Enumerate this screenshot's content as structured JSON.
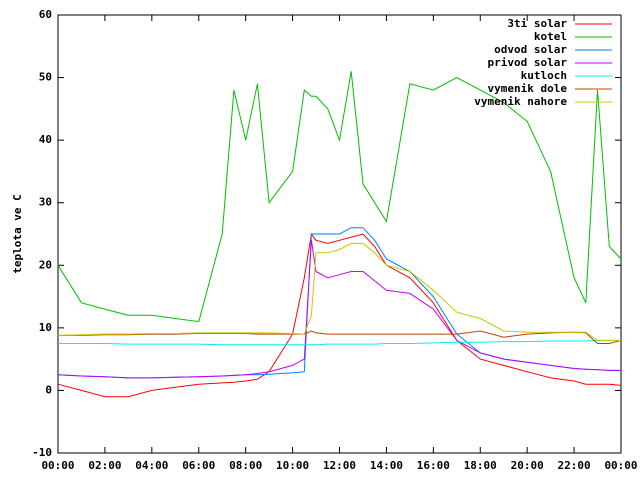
{
  "chart_data": {
    "type": "line",
    "y_label": "teplota ve C",
    "x": [
      0,
      1,
      2,
      3,
      4,
      5,
      6,
      7,
      7.5,
      8,
      8.5,
      9,
      10,
      10.5,
      10.8,
      11,
      11.5,
      12,
      12.5,
      13,
      13.5,
      14,
      15,
      16,
      17,
      18,
      19,
      20,
      21,
      22,
      22.5,
      23,
      23.5,
      24
    ],
    "xlim": [
      0,
      24
    ],
    "xticks": [
      {
        "value": 0,
        "label": "00:00"
      },
      {
        "value": 2,
        "label": "02:00"
      },
      {
        "value": 4,
        "label": "04:00"
      },
      {
        "value": 6,
        "label": "06:00"
      },
      {
        "value": 8,
        "label": "08:00"
      },
      {
        "value": 10,
        "label": "10:00"
      },
      {
        "value": 12,
        "label": "12:00"
      },
      {
        "value": 14,
        "label": "14:00"
      },
      {
        "value": 16,
        "label": "16:00"
      },
      {
        "value": 18,
        "label": "18:00"
      },
      {
        "value": 20,
        "label": "20:00"
      },
      {
        "value": 22,
        "label": "22:00"
      },
      {
        "value": 24,
        "label": "00:00"
      }
    ],
    "ylim": [
      -10,
      60
    ],
    "yticks": [
      -10,
      0,
      10,
      20,
      30,
      40,
      50,
      60
    ],
    "legend": "top-right",
    "series": [
      {
        "name": "3ti solar",
        "color": "#ff0000",
        "values": [
          1,
          0,
          -1,
          -1,
          0,
          0.5,
          1,
          1.2,
          1.3,
          1.5,
          1.8,
          3,
          9,
          18,
          25,
          24,
          23.5,
          24,
          24.5,
          25,
          23,
          20,
          18,
          14,
          8,
          5,
          4,
          3,
          2,
          1.5,
          1,
          1,
          1,
          0.8
        ]
      },
      {
        "name": "kotel",
        "color": "#00c000",
        "values": [
          20,
          14,
          13,
          12,
          12,
          11.5,
          11,
          25,
          48,
          40,
          49,
          30,
          35,
          48,
          47,
          47,
          45,
          40,
          51,
          33,
          30,
          27,
          49,
          48,
          50,
          48,
          46,
          43,
          35,
          18,
          14,
          48,
          23,
          21
        ]
      },
      {
        "name": "odvod solar",
        "color": "#0080ff",
        "values": [
          2.5,
          2.3,
          2.2,
          2,
          2,
          2.1,
          2.2,
          2.3,
          2.4,
          2.5,
          2.5,
          2.6,
          2.8,
          3,
          25,
          25,
          25,
          25,
          26,
          26,
          24,
          21,
          19,
          15,
          9,
          6,
          5,
          4.5,
          4,
          3.5,
          3.4,
          3.3,
          3.2,
          3.2
        ]
      },
      {
        "name": "privod solar",
        "color": "#c000ff",
        "values": [
          2.5,
          2.3,
          2.2,
          2,
          2,
          2.1,
          2.2,
          2.3,
          2.4,
          2.5,
          2.7,
          3,
          4,
          5,
          24,
          19,
          18,
          18.5,
          19,
          19,
          17.5,
          16,
          15.5,
          13,
          8,
          6,
          5,
          4.5,
          4,
          3.5,
          3.4,
          3.3,
          3.2,
          3.2
        ]
      },
      {
        "name": "kutloch",
        "color": "#00eeee",
        "values": [
          7.5,
          7.5,
          7.5,
          7.4,
          7.4,
          7.4,
          7.4,
          7.3,
          7.3,
          7.3,
          7.3,
          7.3,
          7.3,
          7.3,
          7.3,
          7.3,
          7.4,
          7.4,
          7.4,
          7.4,
          7.4,
          7.5,
          7.5,
          7.6,
          7.7,
          7.7,
          7.8,
          7.8,
          7.9,
          7.9,
          7.9,
          8,
          8,
          8
        ]
      },
      {
        "name": "vymenik dole",
        "color": "#c04000",
        "values": [
          8.8,
          8.8,
          8.9,
          8.9,
          9,
          9,
          9.1,
          9.1,
          9.1,
          9.1,
          9,
          9,
          9,
          9,
          9.5,
          9.2,
          9,
          9,
          9,
          9,
          9,
          9,
          9,
          9,
          9,
          9.5,
          8.5,
          9,
          9.2,
          9.3,
          9.2,
          7.5,
          7.5,
          8
        ]
      },
      {
        "name": "vymenik nahore",
        "color": "#c8c800",
        "values": [
          8.8,
          8.9,
          9,
          9,
          9.1,
          9.1,
          9.2,
          9.2,
          9.2,
          9.2,
          9.2,
          9.2,
          9.1,
          9,
          12,
          22,
          22,
          22.5,
          23.5,
          23.5,
          22,
          20,
          19,
          16,
          12.5,
          11.5,
          9.5,
          9.3,
          9.3,
          9.3,
          9.3,
          8,
          8,
          8
        ]
      }
    ]
  }
}
